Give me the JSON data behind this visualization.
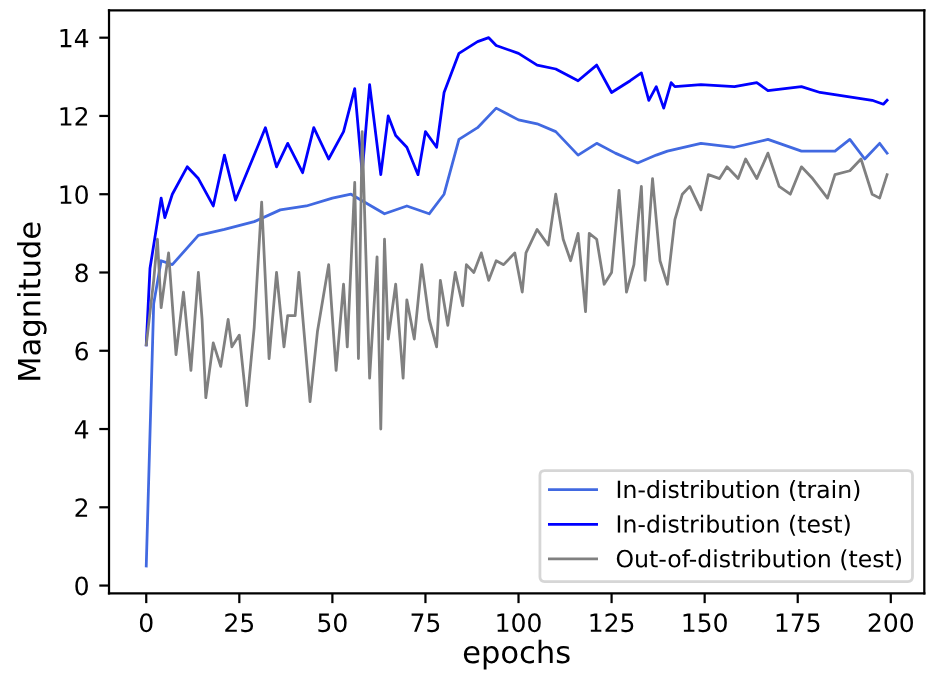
{
  "chart_data": {
    "type": "line",
    "xlabel": "epochs",
    "ylabel": "Magnitude",
    "xlim": [
      -10,
      209
    ],
    "ylim": [
      -0.2,
      14.7
    ],
    "xticks": [
      0,
      25,
      50,
      75,
      100,
      125,
      150,
      175,
      200
    ],
    "yticks": [
      0,
      2,
      4,
      6,
      8,
      10,
      12,
      14
    ],
    "grid": false,
    "legend": "bottom right",
    "line_style": "solid",
    "marker": "none",
    "series": [
      {
        "name": "In-distribution (train)",
        "color": "#4169e1",
        "x": [
          0,
          2,
          4,
          7,
          14,
          21,
          29,
          36,
          43,
          50,
          55,
          64,
          70,
          76,
          80,
          84,
          89,
          94,
          100,
          105,
          110,
          116,
          121,
          126,
          132,
          137,
          140,
          149,
          158,
          167,
          176,
          185,
          189,
          193,
          197,
          199
        ],
        "values": [
          0.5,
          7.2,
          8.3,
          8.2,
          8.95,
          9.1,
          9.3,
          9.6,
          9.7,
          9.9,
          10.0,
          9.5,
          9.7,
          9.5,
          10.0,
          11.4,
          11.7,
          12.2,
          11.9,
          11.8,
          11.6,
          11.0,
          11.3,
          11.05,
          10.8,
          11.0,
          11.1,
          11.3,
          11.2,
          11.4,
          11.1,
          11.1,
          11.4,
          10.9,
          11.3,
          11.05
        ]
      },
      {
        "name": "In-distribution (test)",
        "color": "#0000ff",
        "x": [
          0,
          1,
          4,
          5,
          7,
          11,
          14,
          18,
          21,
          24,
          29,
          32,
          35,
          38,
          42,
          45,
          49,
          53,
          56,
          58,
          60,
          63,
          65,
          67,
          70,
          73,
          75,
          78,
          80,
          84,
          89,
          92,
          94,
          100,
          105,
          110,
          116,
          121,
          125,
          130,
          133,
          135,
          137,
          139,
          141,
          142,
          149,
          158,
          164,
          167,
          176,
          181,
          188,
          195,
          198,
          199
        ],
        "values": [
          6.15,
          8.1,
          9.9,
          9.4,
          10.0,
          10.7,
          10.4,
          9.7,
          11.0,
          9.85,
          11.0,
          11.7,
          10.7,
          11.3,
          10.55,
          11.7,
          10.9,
          11.6,
          12.7,
          10.55,
          12.8,
          10.5,
          12.0,
          11.5,
          11.2,
          10.5,
          11.6,
          11.2,
          12.6,
          13.6,
          13.9,
          14.0,
          13.8,
          13.6,
          13.3,
          13.2,
          12.9,
          13.3,
          12.6,
          12.9,
          13.1,
          12.4,
          12.75,
          12.2,
          12.85,
          12.75,
          12.8,
          12.75,
          12.85,
          12.65,
          12.75,
          12.6,
          12.5,
          12.4,
          12.3,
          12.4
        ]
      },
      {
        "name": "Out-of-distribution (test)",
        "color": "#808080",
        "x": [
          0,
          2,
          3,
          4,
          6,
          8,
          10,
          12,
          14,
          15,
          16,
          18,
          20,
          22,
          23,
          25,
          27,
          29,
          31,
          33,
          35,
          37,
          38,
          40,
          41,
          44,
          46,
          49,
          51,
          53,
          54,
          56,
          57,
          58,
          60,
          62,
          63,
          64,
          65,
          67,
          69,
          70,
          72,
          74,
          76,
          78,
          79,
          81,
          83,
          85,
          86,
          88,
          90,
          92,
          94,
          96,
          99,
          101,
          102,
          105,
          108,
          110,
          112,
          114,
          116,
          118,
          119,
          121,
          123,
          125,
          127,
          129,
          131,
          133,
          134,
          136,
          138,
          140,
          142,
          144,
          146,
          149,
          151,
          154,
          156,
          159,
          161,
          164,
          167,
          170,
          173,
          176,
          179,
          183,
          185,
          189,
          192,
          195,
          197,
          199
        ],
        "values": [
          6.15,
          7.8,
          8.85,
          7.1,
          8.5,
          5.9,
          7.5,
          5.5,
          8.0,
          6.8,
          4.8,
          6.2,
          5.6,
          6.8,
          6.1,
          6.4,
          4.6,
          6.6,
          9.8,
          5.8,
          8.0,
          6.1,
          6.9,
          6.9,
          8.0,
          4.7,
          6.5,
          8.2,
          5.5,
          7.7,
          6.1,
          10.3,
          5.8,
          11.6,
          5.3,
          8.4,
          4.0,
          8.85,
          6.3,
          7.7,
          5.3,
          7.3,
          6.3,
          8.2,
          6.8,
          6.1,
          7.8,
          6.65,
          8.0,
          7.15,
          8.2,
          8.0,
          8.5,
          7.8,
          8.3,
          8.2,
          8.5,
          7.5,
          8.5,
          9.1,
          8.7,
          10.0,
          8.85,
          8.3,
          9.0,
          7.0,
          9.0,
          8.85,
          7.7,
          8.0,
          10.1,
          7.5,
          8.2,
          10.2,
          7.8,
          10.4,
          8.3,
          7.7,
          9.35,
          10.0,
          10.2,
          9.6,
          10.5,
          10.4,
          10.7,
          10.4,
          10.9,
          10.4,
          11.05,
          10.2,
          10.0,
          10.7,
          10.4,
          9.9,
          10.5,
          10.6,
          10.9,
          10.0,
          9.9,
          10.5
        ]
      }
    ]
  }
}
